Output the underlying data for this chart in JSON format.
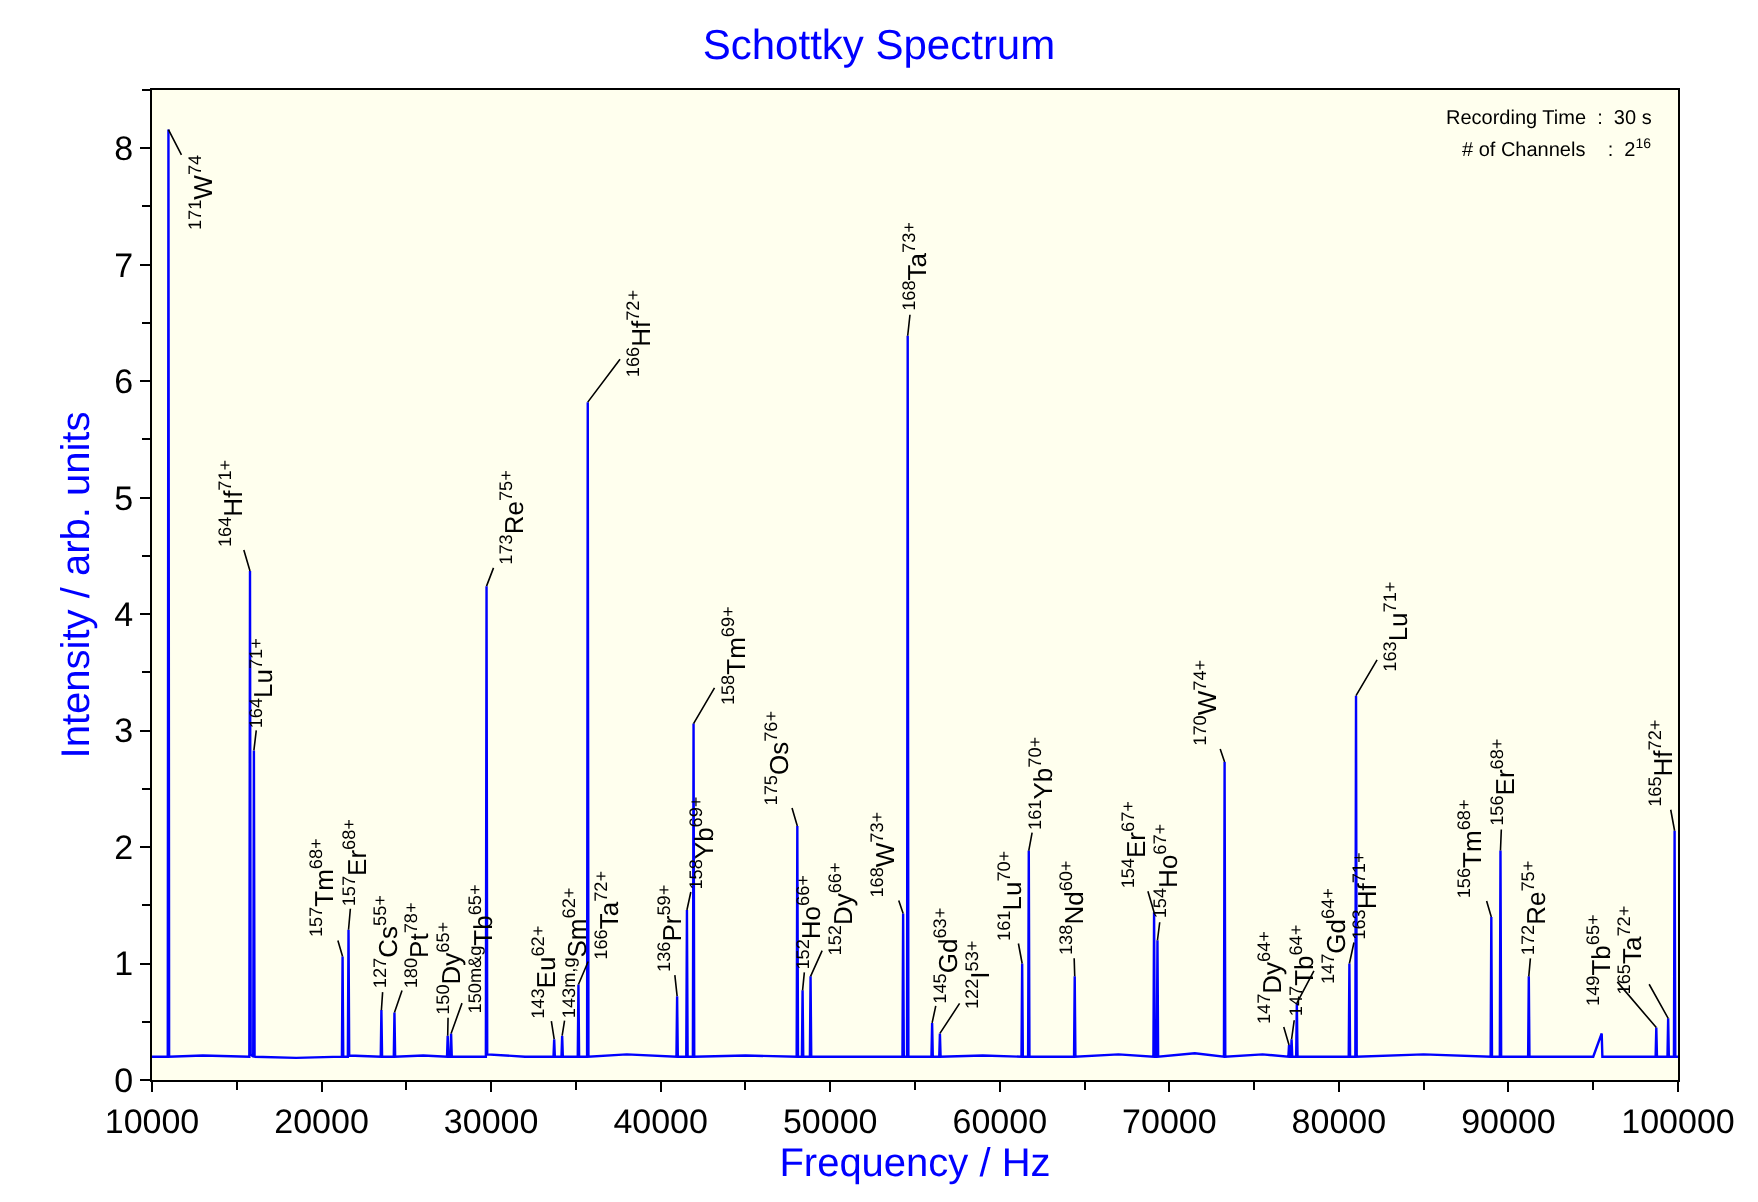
{
  "chart_data": {
    "type": "line",
    "title": "Schottky Spectrum",
    "xlabel": "Frequency / Hz",
    "ylabel": "Intensity / arb. units",
    "xlim": [
      10000,
      100000
    ],
    "xticks": [
      10000,
      20000,
      30000,
      40000,
      50000,
      60000,
      70000,
      80000,
      90000,
      100000
    ],
    "ylim": [
      0,
      8.5
    ],
    "yticks": [
      0,
      1,
      2,
      3,
      4,
      5,
      6,
      7,
      8
    ],
    "grid": false,
    "marker": "none",
    "line_style": "solid",
    "series": [
      {
        "color": "#0000ff",
        "x": [
          10000,
          10930,
          10970,
          11010,
          13000,
          15740,
          15780,
          15820,
          15970,
          16010,
          16050,
          18500,
          21200,
          21240,
          21280,
          21550,
          21590,
          21630,
          23490,
          23530,
          23570,
          24260,
          24300,
          24340,
          26000,
          27400,
          27440,
          27480,
          27600,
          27640,
          27680,
          29690,
          29730,
          29770,
          32000,
          33680,
          33720,
          33760,
          34150,
          34190,
          34230,
          35110,
          35150,
          35190,
          35660,
          35700,
          35740,
          38000,
          40930,
          40970,
          41010,
          41510,
          41550,
          41590,
          41900,
          41940,
          41980,
          45000,
          48020,
          48060,
          48100,
          48330,
          48370,
          48410,
          48800,
          48840,
          48880,
          51500,
          54260,
          54300,
          54340,
          54530,
          54570,
          54610,
          55970,
          56010,
          56050,
          56430,
          56470,
          56510,
          59000,
          61280,
          61320,
          61360,
          61670,
          61710,
          61750,
          64380,
          64420,
          64460,
          67000,
          69060,
          69100,
          69140,
          69260,
          69300,
          69340,
          71500,
          73220,
          73260,
          73300,
          75500,
          77020,
          77060,
          77100,
          77170,
          77210,
          77250,
          77480,
          77520,
          77560,
          80580,
          80620,
          80660,
          80970,
          81010,
          81050,
          85000,
          88950,
          88990,
          89030,
          89490,
          89530,
          89570,
          91160,
          91200,
          91240,
          95000,
          95500,
          95540,
          98680,
          98720,
          98760,
          99380,
          99420,
          99460,
          99760,
          99800,
          99840,
          100000
        ],
        "values": [
          0.2,
          0.2,
          8.16,
          0.2,
          0.21,
          0.2,
          4.37,
          0.22,
          0.2,
          2.83,
          0.2,
          0.19,
          0.2,
          1.06,
          0.2,
          0.2,
          1.29,
          0.21,
          0.2,
          0.6,
          0.2,
          0.2,
          0.58,
          0.2,
          0.21,
          0.2,
          0.38,
          0.2,
          0.2,
          0.4,
          0.2,
          0.2,
          4.24,
          0.22,
          0.2,
          0.2,
          0.35,
          0.2,
          0.2,
          0.38,
          0.2,
          0.2,
          0.82,
          0.2,
          0.2,
          5.82,
          0.2,
          0.22,
          0.2,
          0.72,
          0.2,
          0.2,
          1.46,
          0.2,
          0.2,
          3.06,
          0.2,
          0.21,
          0.2,
          2.18,
          0.2,
          0.2,
          0.77,
          0.2,
          0.2,
          0.89,
          0.2,
          0.2,
          0.2,
          1.43,
          0.2,
          0.2,
          6.39,
          0.2,
          0.2,
          0.49,
          0.2,
          0.2,
          0.4,
          0.2,
          0.21,
          0.2,
          1.0,
          0.2,
          0.2,
          1.97,
          0.2,
          0.2,
          0.89,
          0.2,
          0.22,
          0.2,
          1.44,
          0.2,
          0.2,
          1.2,
          0.2,
          0.23,
          0.2,
          2.73,
          0.2,
          0.22,
          0.2,
          0.3,
          0.2,
          0.2,
          0.35,
          0.2,
          0.2,
          0.66,
          0.2,
          0.2,
          1.0,
          0.2,
          0.2,
          3.3,
          0.2,
          0.22,
          0.2,
          1.4,
          0.2,
          0.2,
          1.97,
          0.2,
          0.2,
          0.89,
          0.2,
          0.2,
          0.4,
          0.2,
          0.2,
          0.45,
          0.2,
          0.2,
          0.53,
          0.2,
          0.2,
          2.14,
          0.2,
          0.2
        ]
      }
    ],
    "annotations": [
      {
        "text": "$^{171}$W$^{74}$",
        "x": 10970,
        "y": 8.16
      },
      {
        "text": "$^{164}$Hf$^{71+}$",
        "x": 15780,
        "y": 4.37
      },
      {
        "text": "$^{164}$Lu$^{71+}$",
        "x": 16010,
        "y": 2.83
      },
      {
        "text": "$^{157}$Tm$^{68+}$",
        "x": 21240,
        "y": 1.06
      },
      {
        "text": "$^{157}$Er$^{68+}$",
        "x": 21590,
        "y": 1.29
      },
      {
        "text": "$^{127}$Cs$^{55+}$",
        "x": 23530,
        "y": 0.6
      },
      {
        "text": "$^{180}$Pt$^{78+}$",
        "x": 24300,
        "y": 0.58
      },
      {
        "text": "$^{150}$Dy$^{65+}$",
        "x": 27440,
        "y": 0.38
      },
      {
        "text": "$^{150m&g}$Tb$^{65+}$",
        "x": 27640,
        "y": 0.4
      },
      {
        "text": "$^{173}$Re$^{75+}$",
        "x": 29730,
        "y": 4.24
      },
      {
        "text": "$^{143}$Eu$^{62+}$",
        "x": 33720,
        "y": 0.35
      },
      {
        "text": "$^{143m,g}$Sm$^{62+}$",
        "x": 34190,
        "y": 0.38
      },
      {
        "text": "$^{166}$Ta$^{72+}$",
        "x": 35150,
        "y": 0.82
      },
      {
        "text": "$^{166}$Hf$^{72+}$",
        "x": 35700,
        "y": 5.82
      },
      {
        "text": "$^{136}$Pr$^{59+}$",
        "x": 40970,
        "y": 0.72
      },
      {
        "text": "$^{158}$Yb$^{69+}$",
        "x": 41550,
        "y": 1.46
      },
      {
        "text": "$^{158}$Tm$^{69+}$",
        "x": 41940,
        "y": 3.06
      },
      {
        "text": "$^{175}$Os$^{76+}$",
        "x": 48060,
        "y": 2.18
      },
      {
        "text": "$^{152}$Ho$^{66+}$",
        "x": 48370,
        "y": 0.77
      },
      {
        "text": "$^{152}$Dy$^{66+}$",
        "x": 48840,
        "y": 0.89
      },
      {
        "text": "$^{168}$W$^{73+}$",
        "x": 54300,
        "y": 1.43
      },
      {
        "text": "$^{168}$Ta$^{73+}$",
        "x": 54570,
        "y": 6.39
      },
      {
        "text": "$^{145}$Gd$^{63+}$",
        "x": 56010,
        "y": 0.49
      },
      {
        "text": "$^{122}$I$^{53+}$",
        "x": 56470,
        "y": 0.4
      },
      {
        "text": "$^{161}$Lu$^{70+}$",
        "x": 61320,
        "y": 1.0
      },
      {
        "text": "$^{161}$Yb$^{70+}$",
        "x": 61710,
        "y": 1.97
      },
      {
        "text": "$^{138}$Nd$^{60+}$",
        "x": 64420,
        "y": 0.89
      },
      {
        "text": "$^{154}$Er$^{67+}$",
        "x": 69100,
        "y": 1.44
      },
      {
        "text": "$^{154}$Ho$^{67+}$",
        "x": 69300,
        "y": 1.2
      },
      {
        "text": "$^{170}$W$^{74+}$",
        "x": 73260,
        "y": 2.73
      },
      {
        "text": "$^{147}$Dy$^{64+}$",
        "x": 77060,
        "y": 0.3
      },
      {
        "text": "$^{147}$Tb$^{64+}$",
        "x": 77210,
        "y": 0.35
      },
      {
        "text": "$^{147}$Gd$^{64+}$",
        "x": 77520,
        "y": 0.66
      },
      {
        "text": "$^{163}$Hf$^{71+}$",
        "x": 80620,
        "y": 1.0
      },
      {
        "text": "$^{163}$Lu$^{71+}$",
        "x": 81010,
        "y": 3.3
      },
      {
        "text": "$^{156}$Tm$^{68+}$",
        "x": 88990,
        "y": 1.4
      },
      {
        "text": "$^{156}$Er$^{68+}$",
        "x": 89530,
        "y": 1.97
      },
      {
        "text": "$^{172}$Re$^{75+}$",
        "x": 91200,
        "y": 0.89
      },
      {
        "text": "$^{149}$Tb$^{65+}$",
        "x": 98720,
        "y": 0.45
      },
      {
        "text": "$^{165}$Ta$^{72+}$",
        "x": 99420,
        "y": 0.53
      },
      {
        "text": "$^{165}$Hf$^{72+}$",
        "x": 99800,
        "y": 2.14
      },
      "Recording Time  :  30 s",
      "# of Channels    :  2$^{16}$"
    ]
  }
}
